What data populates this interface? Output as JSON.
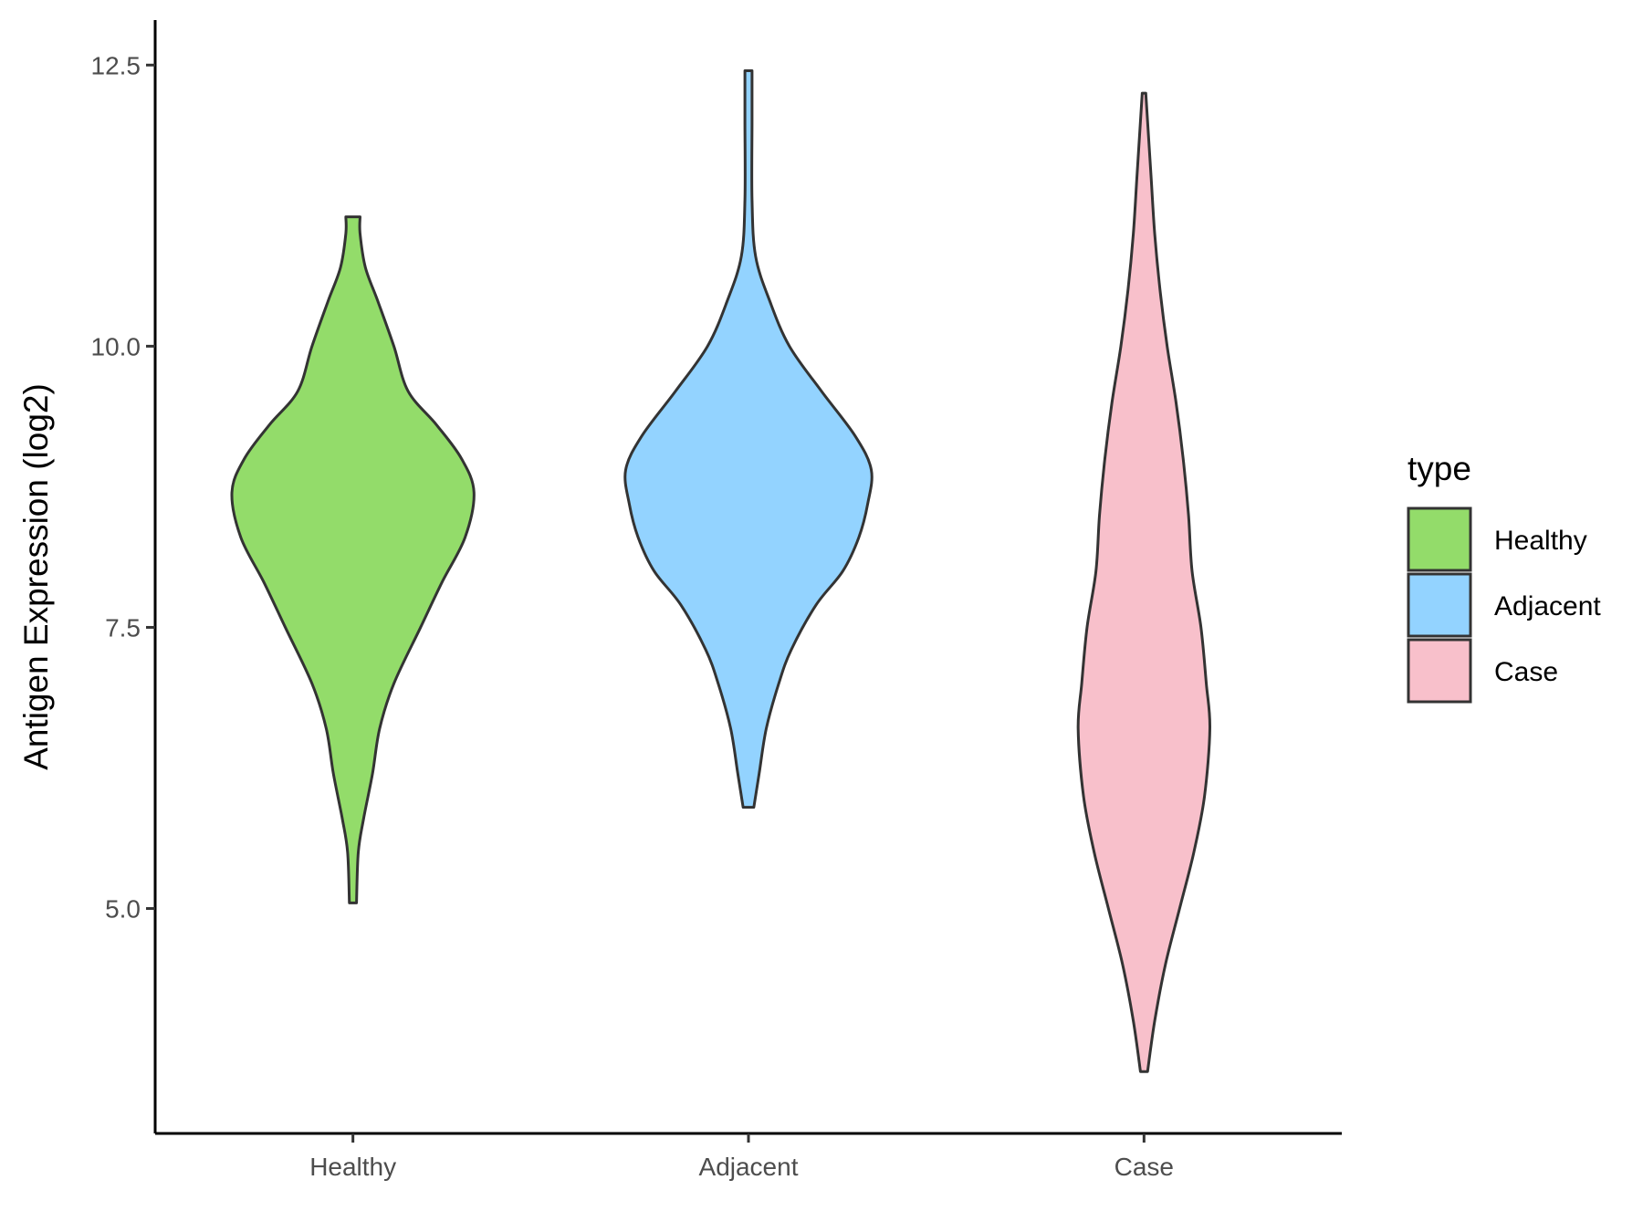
{
  "chart_data": {
    "type": "violin",
    "ylabel": "Antigen Expression (log2)",
    "xlabel": "",
    "ylim": [
      3.0,
      12.9
    ],
    "yticks": [
      5.0,
      7.5,
      10.0,
      12.5
    ],
    "ytick_labels": [
      "5.0",
      "7.5",
      "10.0",
      "12.5"
    ],
    "categories": [
      "Healthy",
      "Adjacent",
      "Case"
    ],
    "legend": {
      "title": "type",
      "position": "right",
      "entries": [
        {
          "label": "Healthy",
          "color": "#93DC6A"
        },
        {
          "label": "Adjacent",
          "color": "#93D3FF"
        },
        {
          "label": "Case",
          "color": "#F8C0CB"
        }
      ]
    },
    "series": [
      {
        "category": "Healthy",
        "color": "#93DC6A",
        "min": 5.05,
        "max": 11.15,
        "density": [
          [
            5.05,
            0.02
          ],
          [
            5.5,
            0.03
          ],
          [
            5.8,
            0.06
          ],
          [
            6.2,
            0.11
          ],
          [
            6.6,
            0.15
          ],
          [
            7.0,
            0.23
          ],
          [
            7.5,
            0.38
          ],
          [
            7.9,
            0.5
          ],
          [
            8.3,
            0.63
          ],
          [
            8.7,
            0.68
          ],
          [
            9.0,
            0.61
          ],
          [
            9.3,
            0.47
          ],
          [
            9.6,
            0.31
          ],
          [
            10.0,
            0.23
          ],
          [
            10.4,
            0.14
          ],
          [
            10.7,
            0.07
          ],
          [
            11.0,
            0.04
          ],
          [
            11.15,
            0.04
          ]
        ]
      },
      {
        "category": "Adjacent",
        "color": "#93D3FF",
        "min": 5.9,
        "max": 12.45,
        "density": [
          [
            5.9,
            0.03
          ],
          [
            6.2,
            0.06
          ],
          [
            6.6,
            0.1
          ],
          [
            7.0,
            0.17
          ],
          [
            7.3,
            0.24
          ],
          [
            7.7,
            0.38
          ],
          [
            8.0,
            0.53
          ],
          [
            8.3,
            0.62
          ],
          [
            8.6,
            0.67
          ],
          [
            8.9,
            0.69
          ],
          [
            9.2,
            0.6
          ],
          [
            9.6,
            0.41
          ],
          [
            10.0,
            0.23
          ],
          [
            10.4,
            0.12
          ],
          [
            10.8,
            0.04
          ],
          [
            11.3,
            0.02
          ],
          [
            12.0,
            0.02
          ],
          [
            12.45,
            0.02
          ]
        ]
      },
      {
        "category": "Case",
        "color": "#F8C0CB",
        "min": 3.55,
        "max": 12.25,
        "density": [
          [
            3.55,
            0.02
          ],
          [
            4.0,
            0.06
          ],
          [
            4.5,
            0.12
          ],
          [
            5.0,
            0.2
          ],
          [
            5.5,
            0.28
          ],
          [
            6.0,
            0.34
          ],
          [
            6.6,
            0.37
          ],
          [
            7.0,
            0.35
          ],
          [
            7.5,
            0.32
          ],
          [
            8.0,
            0.27
          ],
          [
            8.5,
            0.25
          ],
          [
            9.0,
            0.22
          ],
          [
            9.5,
            0.18
          ],
          [
            10.0,
            0.13
          ],
          [
            10.5,
            0.09
          ],
          [
            11.0,
            0.06
          ],
          [
            11.5,
            0.04
          ],
          [
            12.0,
            0.02
          ],
          [
            12.25,
            0.01
          ]
        ]
      }
    ]
  }
}
